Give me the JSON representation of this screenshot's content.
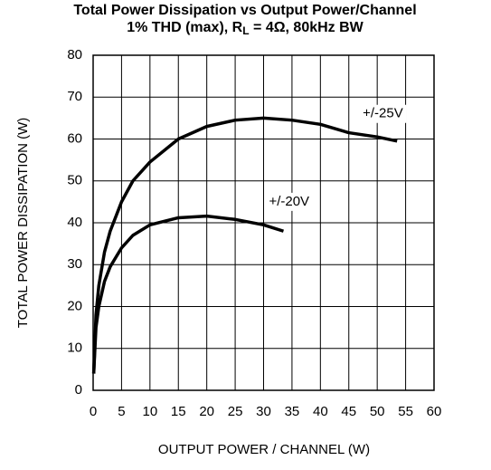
{
  "chart_data": {
    "type": "line",
    "title": "Total Power Dissipation vs Output Power/Channel",
    "subtitle": [
      "1% THD (max), R",
      "L",
      " = 4Ω, 80kHz BW"
    ],
    "x_label": "OUTPUT POWER / CHANNEL (W)",
    "y_label": "TOTAL POWER DISSIPATION (W)",
    "xlim": [
      0,
      60
    ],
    "xticks": [
      0,
      5,
      10,
      15,
      20,
      25,
      30,
      35,
      40,
      45,
      50,
      55,
      60
    ],
    "ylim": [
      0,
      80
    ],
    "yticks": [
      0,
      10,
      20,
      30,
      40,
      50,
      60,
      70,
      80
    ],
    "grid": true,
    "series": [
      {
        "name": "+/-25V",
        "color": "#000000",
        "x": [
          0.1,
          0.5,
          1,
          2,
          3,
          5,
          7,
          10,
          15,
          20,
          25,
          30,
          35,
          40,
          45,
          50,
          53.5
        ],
        "values": [
          4,
          18,
          25,
          33,
          38,
          45,
          50,
          54.5,
          60,
          63,
          64.5,
          65,
          64.5,
          63.5,
          61.5,
          60.5,
          59.5
        ]
      },
      {
        "name": "+/-20V",
        "color": "#000000",
        "x": [
          0.1,
          0.5,
          1,
          2,
          3,
          5,
          7,
          10,
          15,
          20,
          25,
          30,
          33.5
        ],
        "values": [
          4,
          15,
          20,
          26,
          29.5,
          34,
          37,
          39.5,
          41.2,
          41.6,
          40.8,
          39.5,
          38
        ]
      }
    ],
    "annotations": [
      {
        "text": "+/-25V",
        "x": 51,
        "y": 66
      },
      {
        "text": "+/-20V",
        "x": 34.5,
        "y": 45
      }
    ]
  }
}
